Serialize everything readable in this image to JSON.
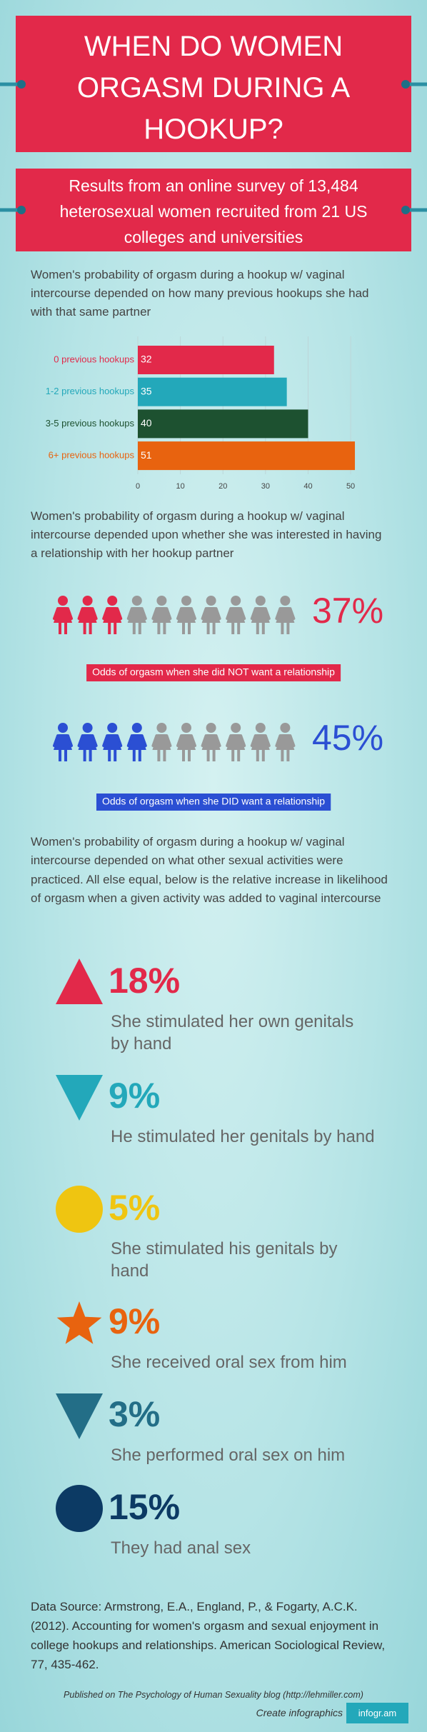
{
  "header": {
    "title": "WHEN DO WOMEN ORGASM DURING A HOOKUP?",
    "subtitle": "Results from an online survey of 13,484 heterosexual women recruited from 21 US colleges and universities"
  },
  "chart_data": {
    "type": "bar",
    "orientation": "horizontal",
    "title": "Women's probability of orgasm during a hookup w/ vaginal intercourse depended on how many previous hookups she had with that same partner",
    "categories": [
      "0 previous hookups",
      "1-2 previous hookups",
      "3-5 previous hookups",
      "6+ previous hookups"
    ],
    "values": [
      32,
      35,
      40,
      51
    ],
    "colors": [
      "#e2294a",
      "#23a8ba",
      "#1d5130",
      "#e8630f"
    ],
    "xlim": [
      0,
      52
    ],
    "xticks": [
      0,
      10,
      20,
      30,
      40,
      50
    ],
    "grid": true
  },
  "relationship": {
    "text": "Women's probability of orgasm during a hookup w/ vaginal intercourse depended upon whether she was interested in having a relationship with her hookup partner",
    "rows": [
      {
        "percent": "37%",
        "label": "Odds of orgasm when she did NOT want a relationship",
        "color": "#e2294a"
      },
      {
        "percent": "45%",
        "label": "Odds of orgasm when she DID want a relationship",
        "color": "#2b4fd3"
      }
    ]
  },
  "activities": {
    "text": "Women's probability of orgasm during a hookup w/ vaginal intercourse depended on what other sexual activities were practiced. All else equal, below is the relative increase in likelihood of orgasm when a given activity was added to vaginal intercourse",
    "items": [
      {
        "percent": "18%",
        "label": "She stimulated her own genitals by hand",
        "shape": "triangle-up",
        "color": "#e2294a"
      },
      {
        "percent": "9%",
        "label": "He stimulated her genitals by hand",
        "shape": "triangle-down",
        "color": "#23a8ba"
      },
      {
        "percent": "5%",
        "label": "She stimulated his genitals by hand",
        "shape": "circle",
        "color": "#efc511"
      },
      {
        "percent": "9%",
        "label": "She received oral sex from him",
        "shape": "star",
        "color": "#e8630f"
      },
      {
        "percent": "3%",
        "label": "She performed oral sex on him",
        "shape": "triangle-down",
        "color": "#236e87"
      },
      {
        "percent": "15%",
        "label": "They had anal sex",
        "shape": "circle",
        "color": "#0c3a64"
      }
    ]
  },
  "footer": {
    "source": "Data Source: Armstrong, E.A., England, P., & Fogarty, A.C.K. (2012). Accounting for women's orgasm and sexual enjoyment in college hookups and relationships. American Sociological Review, 77, 435-462.",
    "published": "Published on The Psychology of Human Sexuality blog (http://lehmiller.com)",
    "cta": "Create infographics",
    "brand": "infogr.am"
  }
}
